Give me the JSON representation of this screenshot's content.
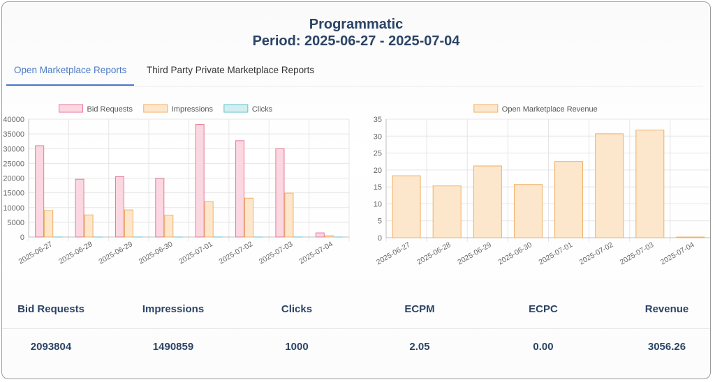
{
  "header": {
    "title": "Programmatic",
    "period": "Period: 2025-06-27 - 2025-07-04"
  },
  "tabs": [
    {
      "label": "Open Marketplace Reports",
      "active": true
    },
    {
      "label": "Third Party Private Marketplace Reports",
      "active": false
    }
  ],
  "colors": {
    "bid_fill": "#fbd7e1",
    "bid_stroke": "#e67a96",
    "imp_fill": "#fde7cc",
    "imp_stroke": "#f0b063",
    "clk_fill": "#d2eef0",
    "clk_stroke": "#60c4cc",
    "text": "#2b4466",
    "accent": "#4a79c7"
  },
  "chart_data": [
    {
      "type": "bar",
      "categories": [
        "2025-06-27",
        "2025-06-28",
        "2025-06-29",
        "2025-06-30",
        "2025-07-01",
        "2025-07-02",
        "2025-07-03",
        "2025-07-04"
      ],
      "series": [
        {
          "name": "Bid Requests",
          "values": [
            31000,
            19600,
            20500,
            19900,
            38200,
            32700,
            30000,
            1400
          ]
        },
        {
          "name": "Impressions",
          "values": [
            9000,
            7500,
            9200,
            7400,
            12000,
            13200,
            14900,
            450
          ]
        },
        {
          "name": "Clicks",
          "values": [
            5,
            4,
            5,
            4,
            8,
            6,
            7,
            1
          ]
        }
      ],
      "ylim": [
        0,
        40000
      ],
      "yticks": [
        0,
        5000,
        10000,
        15000,
        20000,
        25000,
        30000,
        35000,
        40000
      ],
      "legend": "top-center",
      "grid": true
    },
    {
      "type": "bar",
      "categories": [
        "2025-06-27",
        "2025-06-28",
        "2025-06-29",
        "2025-06-30",
        "2025-07-01",
        "2025-07-02",
        "2025-07-03",
        "2025-07-04"
      ],
      "series": [
        {
          "name": "Open Marketplace Revenue",
          "values": [
            18.3,
            15.3,
            21.2,
            15.7,
            22.5,
            30.7,
            31.8,
            0.2
          ]
        }
      ],
      "ylim": [
        0,
        35
      ],
      "yticks": [
        0,
        5,
        10,
        15,
        20,
        25,
        30,
        35
      ],
      "legend": "top-center",
      "grid": true
    }
  ],
  "stats": [
    {
      "label": "Bid Requests",
      "value": "2093804"
    },
    {
      "label": "Impressions",
      "value": "1490859"
    },
    {
      "label": "Clicks",
      "value": "1000"
    },
    {
      "label": "ECPM",
      "value": "2.05"
    },
    {
      "label": "ECPC",
      "value": "0.00"
    },
    {
      "label": "Revenue",
      "value": "3056.26"
    }
  ]
}
